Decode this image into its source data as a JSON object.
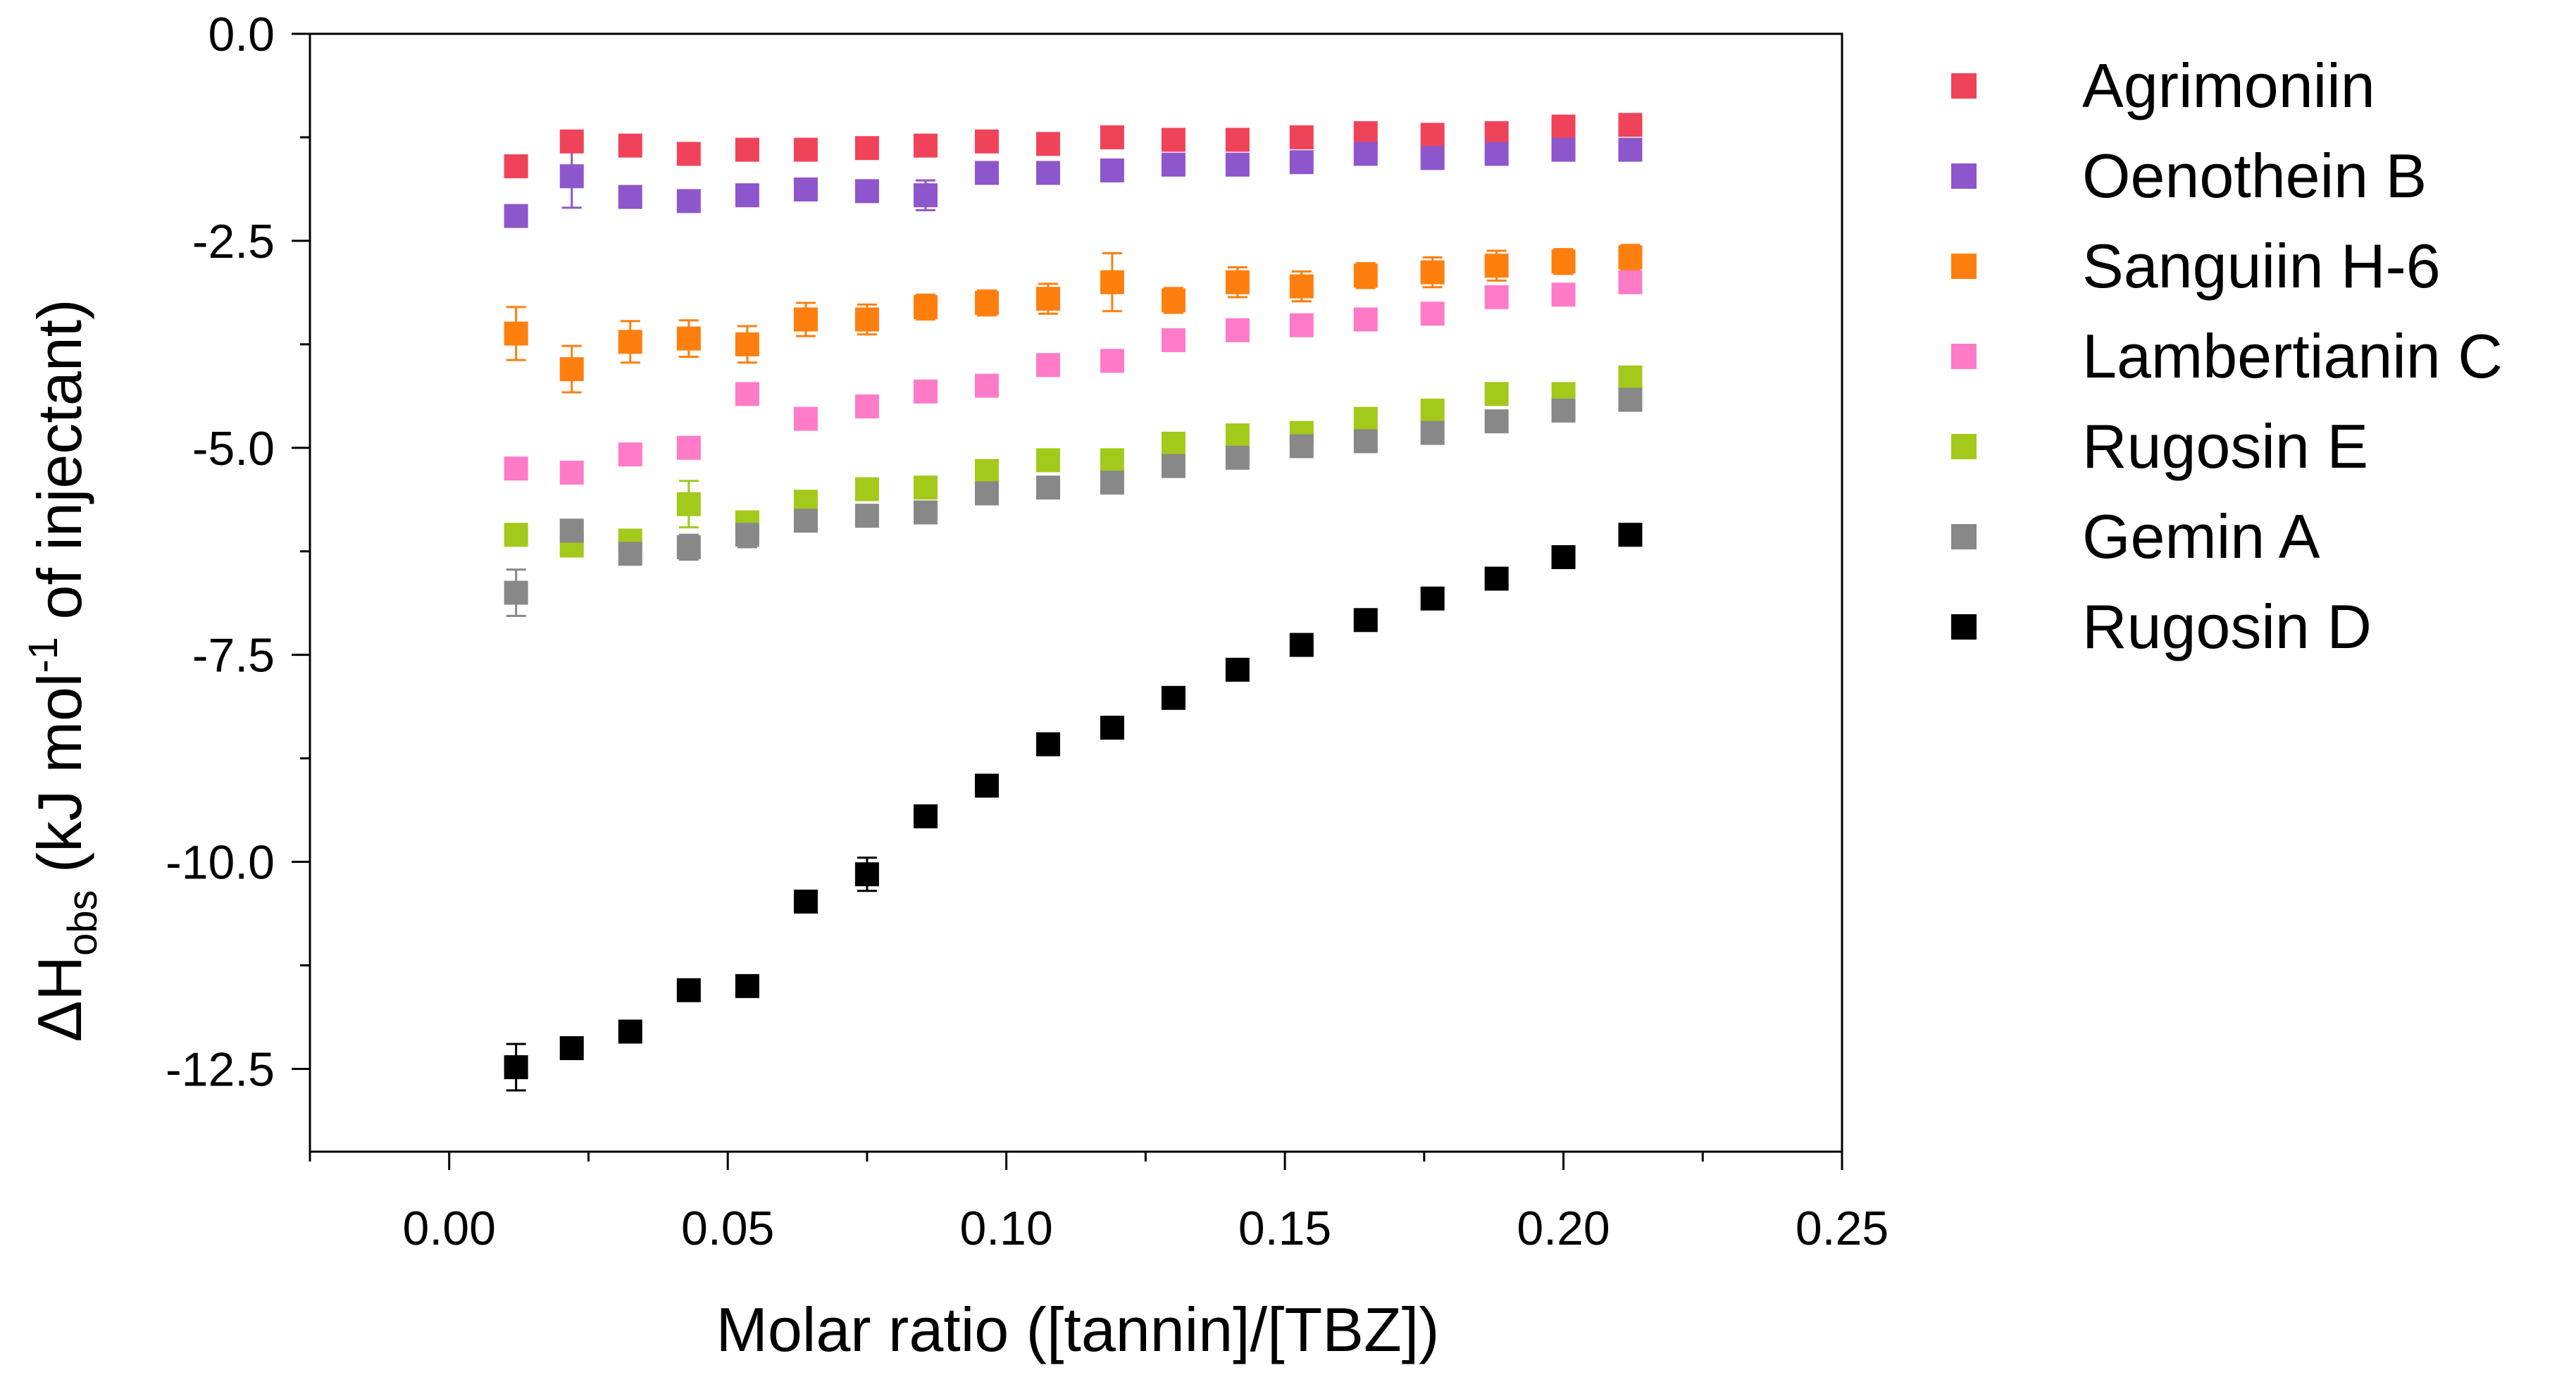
{
  "chart_data": {
    "type": "scatter",
    "title": "",
    "xlabel": "Molar ratio ([tannin]/[TBZ])",
    "ylabel": {
      "prefix": "ΔH",
      "subscript": "obs",
      "middle": " (kJ mol",
      "superscript": "-1",
      "suffix": " of injectant)"
    },
    "xlim": [
      -0.025,
      0.25
    ],
    "ylim": [
      -13.5,
      0.0
    ],
    "xticks": [
      0.0,
      0.05,
      0.1,
      0.15,
      0.2,
      0.25
    ],
    "xtick_labels": [
      "0.00",
      "0.05",
      "0.10",
      "0.15",
      "0.20",
      "0.25"
    ],
    "yticks": [
      0.0,
      -2.5,
      -5.0,
      -7.5,
      -10.0,
      -12.5
    ],
    "ytick_labels": [
      "0.0",
      "-2.5",
      "-5.0",
      "-7.5",
      "-10.0",
      "-12.5"
    ],
    "grid": false,
    "legend_position": "right",
    "x": [
      0.012,
      0.022,
      0.0325,
      0.043,
      0.0535,
      0.064,
      0.075,
      0.0855,
      0.0965,
      0.1075,
      0.119,
      0.13,
      0.1415,
      0.153,
      0.1645,
      0.1765,
      0.188,
      0.2,
      0.212
    ],
    "series": [
      {
        "name": "Agrimoniin",
        "color": "#f0435a",
        "values": [
          -1.6,
          -1.3,
          -1.35,
          -1.45,
          -1.4,
          -1.4,
          -1.38,
          -1.35,
          -1.3,
          -1.33,
          -1.25,
          -1.28,
          -1.28,
          -1.25,
          -1.2,
          -1.22,
          -1.2,
          -1.12,
          -1.1
        ],
        "errors": [
          0.05,
          0.05,
          0.05,
          0.05,
          0.05,
          0.05,
          0.05,
          0.05,
          0.05,
          0.05,
          0.05,
          0.05,
          0.05,
          0.05,
          0.05,
          0.05,
          0.05,
          0.05,
          0.05
        ]
      },
      {
        "name": "Oenothein B",
        "color": "#8e56cc",
        "values": [
          -2.2,
          -1.72,
          -1.97,
          -2.02,
          -1.95,
          -1.88,
          -1.9,
          -1.95,
          -1.68,
          -1.68,
          -1.65,
          -1.58,
          -1.58,
          -1.55,
          -1.45,
          -1.5,
          -1.45,
          -1.4,
          -1.4
        ],
        "errors": [
          0.05,
          0.38,
          0.05,
          0.05,
          0.05,
          0.05,
          0.05,
          0.18,
          0.05,
          0.05,
          0.05,
          0.05,
          0.05,
          0.05,
          0.05,
          0.05,
          0.05,
          0.05,
          0.05
        ]
      },
      {
        "name": "Sanguiin H-6",
        "color": "#ff7f0e",
        "values": [
          -3.62,
          -4.05,
          -3.72,
          -3.68,
          -3.75,
          -3.45,
          -3.45,
          -3.3,
          -3.25,
          -3.2,
          -3.0,
          -3.22,
          -3.0,
          -3.05,
          -2.92,
          -2.88,
          -2.8,
          -2.75,
          -2.7
        ],
        "errors": [
          0.32,
          0.28,
          0.25,
          0.22,
          0.22,
          0.2,
          0.18,
          0.15,
          0.15,
          0.18,
          0.35,
          0.15,
          0.18,
          0.18,
          0.15,
          0.18,
          0.18,
          0.15,
          0.15
        ]
      },
      {
        "name": "Lambertianin C",
        "color": "#ff7bc8",
        "values": [
          -5.25,
          -5.3,
          -5.08,
          -5.0,
          -4.35,
          -4.65,
          -4.5,
          -4.32,
          -4.25,
          -4.0,
          -3.95,
          -3.7,
          -3.58,
          -3.52,
          -3.45,
          -3.38,
          -3.18,
          -3.15,
          -3.0
        ],
        "errors": [
          0.05,
          0.05,
          0.05,
          0.05,
          0.05,
          0.05,
          0.05,
          0.05,
          0.05,
          0.05,
          0.05,
          0.05,
          0.05,
          0.05,
          0.05,
          0.05,
          0.05,
          0.05,
          0.05
        ]
      },
      {
        "name": "Rugosin E",
        "color": "#a3c91a",
        "values": [
          -6.05,
          -6.18,
          -6.12,
          -5.68,
          -5.9,
          -5.65,
          -5.5,
          -5.48,
          -5.28,
          -5.15,
          -5.15,
          -4.95,
          -4.85,
          -4.82,
          -4.65,
          -4.55,
          -4.35,
          -4.35,
          -4.15
        ],
        "errors": [
          0.05,
          0.05,
          0.05,
          0.28,
          0.05,
          0.05,
          0.05,
          0.05,
          0.05,
          0.05,
          0.05,
          0.05,
          0.05,
          0.05,
          0.05,
          0.05,
          0.05,
          0.05,
          0.05
        ]
      },
      {
        "name": "Gemin A",
        "color": "#888888",
        "values": [
          -6.75,
          -6.0,
          -6.28,
          -6.2,
          -6.05,
          -5.88,
          -5.82,
          -5.78,
          -5.55,
          -5.48,
          -5.42,
          -5.22,
          -5.12,
          -4.98,
          -4.92,
          -4.82,
          -4.68,
          -4.55,
          -4.42
        ],
        "errors": [
          0.28,
          0.1,
          0.1,
          0.15,
          0.15,
          0.12,
          0.05,
          0.05,
          0.05,
          0.05,
          0.05,
          0.05,
          0.1,
          0.05,
          0.05,
          0.05,
          0.05,
          0.05,
          0.05
        ]
      },
      {
        "name": "Rugosin D",
        "color": "#000000",
        "values": [
          -12.48,
          -12.25,
          -12.05,
          -11.55,
          -11.5,
          -10.48,
          -10.15,
          -9.45,
          -9.08,
          -8.58,
          -8.38,
          -8.02,
          -7.68,
          -7.38,
          -7.08,
          -6.82,
          -6.58,
          -6.32,
          -6.05
        ],
        "errors": [
          0.28,
          0.05,
          0.05,
          0.05,
          0.05,
          0.05,
          0.2,
          0.05,
          0.05,
          0.05,
          0.05,
          0.05,
          0.05,
          0.05,
          0.05,
          0.05,
          0.05,
          0.05,
          0.05
        ]
      }
    ]
  }
}
